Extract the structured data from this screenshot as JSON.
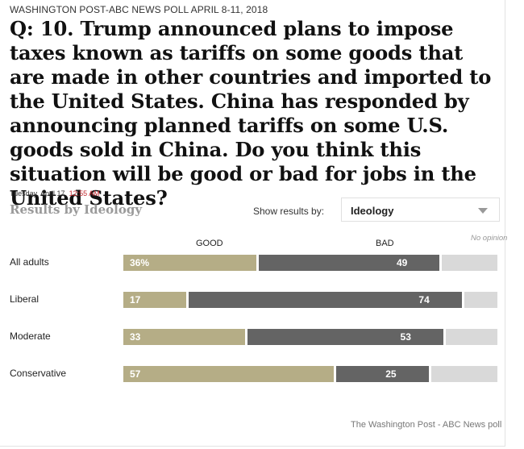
{
  "header": {
    "kicker": "WASHINGTON POST-ABC NEWS POLL APRIL 8-11, 2018",
    "question": "Q: 10. Trump announced plans to impose taxes known as tariffs on some goods that are made in other countries and imported to the United States. China has responded by announcing planned tariffs on some U.S. goods sold in China. Do you think this situation will be good or bad for jobs in the United States?",
    "date": "Tuesday, April 17,",
    "time": "12:55 AM"
  },
  "controls": {
    "results_title": "Results by Ideology",
    "show_label": "Show results by:",
    "selected": "Ideology"
  },
  "source": "The Washington Post - ABC News poll",
  "colors": {
    "good": "#b5ad86",
    "bad": "#646464",
    "no_opinion": "#d9d9d9"
  },
  "chart_data": {
    "type": "bar",
    "stacked": true,
    "orientation": "horizontal",
    "column_headers": {
      "good": "GOOD",
      "bad": "BAD",
      "no_opinion": "No opinion"
    },
    "categories": [
      "All adults",
      "Liberal",
      "Moderate",
      "Conservative"
    ],
    "series": [
      {
        "name": "GOOD",
        "values": [
          36,
          17,
          33,
          57
        ],
        "labels": [
          "36%",
          "17",
          "33",
          "57"
        ]
      },
      {
        "name": "BAD",
        "values": [
          49,
          74,
          53,
          25
        ],
        "labels": [
          "49",
          "74",
          "53",
          "25"
        ]
      },
      {
        "name": "No opinion",
        "values": [
          15,
          9,
          14,
          18
        ]
      }
    ],
    "xlim": [
      0,
      100
    ]
  }
}
